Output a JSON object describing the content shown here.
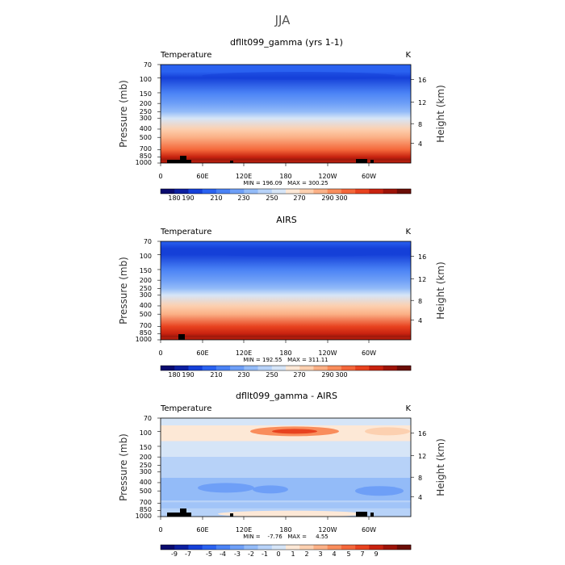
{
  "figure": {
    "season": "JJA"
  },
  "colors": {
    "temperature_scale": [
      "#0a0b6e",
      "#0c1fa0",
      "#1540d8",
      "#2a62f0",
      "#4a82f5",
      "#6e9ff7",
      "#93bbf8",
      "#b7d2f8",
      "#d6e5f7",
      "#fde8d6",
      "#fcd0b0",
      "#fbb086",
      "#f98d5c",
      "#f4673a",
      "#e8421f",
      "#c8220f",
      "#9d1308",
      "#6b0d07"
    ],
    "difference_scale": [
      "#0a0b6e",
      "#0c1fa0",
      "#1540d8",
      "#2a62f0",
      "#4a82f5",
      "#6e9ff7",
      "#93bbf8",
      "#b7d2f8",
      "#d6e5f7",
      "#fde8d6",
      "#fcd0b0",
      "#fbb086",
      "#f98d5c",
      "#f4673a",
      "#e8421f",
      "#c8220f",
      "#9d1308",
      "#6b0d07"
    ],
    "terrain": "#000000"
  },
  "chart_data": [
    {
      "type": "heatmap",
      "title": "dfllt099_gamma (yrs 1-1)",
      "left_label": "Temperature",
      "right_label": "K",
      "xlabel": "",
      "ylabel": "Pressure (mb)",
      "ylabel_right": "Height (km)",
      "x_ticks": [
        "0",
        "60E",
        "120E",
        "180",
        "120W",
        "60W"
      ],
      "y_ticks": [
        "70",
        "100",
        "150",
        "200",
        "250",
        "300",
        "400",
        "500",
        "700",
        "850",
        "1000"
      ],
      "y_ticks_right": [
        "16",
        "12",
        "8",
        "4"
      ],
      "min_max_text": "MIN = 196.09   MAX = 300.25",
      "colorbar_labels": [
        "180",
        "190",
        "210",
        "230",
        "250",
        "270",
        "290",
        "300"
      ],
      "field": "temperature",
      "profile_K": [
        {
          "p": 70,
          "t": 199
        },
        {
          "p": 85,
          "t": 197
        },
        {
          "p": 100,
          "t": 196
        },
        {
          "p": 150,
          "t": 207
        },
        {
          "p": 200,
          "t": 217
        },
        {
          "p": 250,
          "t": 225
        },
        {
          "p": 300,
          "t": 233
        },
        {
          "p": 400,
          "t": 248
        },
        {
          "p": 500,
          "t": 259
        },
        {
          "p": 700,
          "t": 276
        },
        {
          "p": 850,
          "t": 287
        },
        {
          "p": 1000,
          "t": 298
        }
      ]
    },
    {
      "type": "heatmap",
      "title": "AIRS",
      "left_label": "Temperature",
      "right_label": "K",
      "xlabel": "",
      "ylabel": "Pressure (mb)",
      "ylabel_right": "Height (km)",
      "x_ticks": [
        "0",
        "60E",
        "120E",
        "180",
        "120W",
        "60W"
      ],
      "y_ticks": [
        "70",
        "100",
        "150",
        "200",
        "250",
        "300",
        "400",
        "500",
        "700",
        "850",
        "1000"
      ],
      "y_ticks_right": [
        "16",
        "12",
        "8",
        "4"
      ],
      "min_max_text": "MIN = 192.55   MAX = 311.11",
      "colorbar_labels": [
        "180",
        "190",
        "210",
        "230",
        "250",
        "270",
        "290",
        "300"
      ],
      "field": "temperature",
      "profile_K": [
        {
          "p": 70,
          "t": 199
        },
        {
          "p": 85,
          "t": 196
        },
        {
          "p": 100,
          "t": 195
        },
        {
          "p": 150,
          "t": 206
        },
        {
          "p": 200,
          "t": 216
        },
        {
          "p": 250,
          "t": 225
        },
        {
          "p": 300,
          "t": 233
        },
        {
          "p": 400,
          "t": 248
        },
        {
          "p": 500,
          "t": 259
        },
        {
          "p": 700,
          "t": 277
        },
        {
          "p": 850,
          "t": 289
        },
        {
          "p": 1000,
          "t": 300
        }
      ]
    },
    {
      "type": "heatmap",
      "title": "dfllt099_gamma - AIRS",
      "left_label": "Temperature",
      "right_label": "K",
      "xlabel": "",
      "ylabel": "Pressure (mb)",
      "ylabel_right": "Height (km)",
      "x_ticks": [
        "0",
        "60E",
        "120E",
        "180",
        "120W",
        "60W"
      ],
      "y_ticks": [
        "70",
        "100",
        "150",
        "200",
        "250",
        "300",
        "400",
        "500",
        "700",
        "850",
        "1000"
      ],
      "y_ticks_right": [
        "16",
        "12",
        "8",
        "4"
      ],
      "min_max_text": "MIN =    -7.76   MAX =     4.55",
      "colorbar_labels": [
        "-9",
        "-7",
        "-5",
        "-4",
        "-3",
        "-2",
        "-1",
        "0",
        "1",
        "2",
        "3",
        "4",
        "5",
        "7",
        "9"
      ],
      "field": "difference",
      "bands": [
        {
          "p_top": 70,
          "p_bot": 85,
          "label": "-1 to 0"
        },
        {
          "p_top": 85,
          "p_bot": 130,
          "label": "0 to 2"
        },
        {
          "p_top": 130,
          "p_bot": 200,
          "label": "-1 to 0"
        },
        {
          "p_top": 200,
          "p_bot": 350,
          "label": "-2 to -1"
        },
        {
          "p_top": 350,
          "p_bot": 650,
          "label": "-3 to -1"
        },
        {
          "p_top": 650,
          "p_bot": 1000,
          "label": "-2 to 1"
        }
      ]
    }
  ]
}
